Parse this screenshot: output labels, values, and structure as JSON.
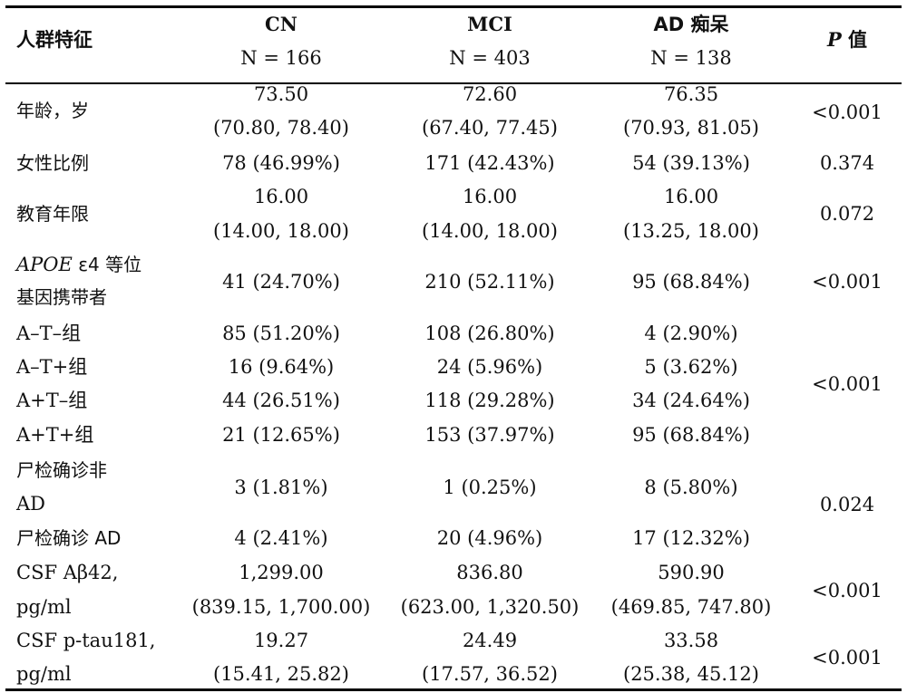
{
  "header": {
    "feature": "人群特征",
    "groups": [
      {
        "name": "CN",
        "n": "N = 166"
      },
      {
        "name": "MCI",
        "n": "N = 403"
      },
      {
        "name": "AD 痴呆",
        "n": "N = 138"
      }
    ],
    "p_italic": "P",
    "p_suffix": " 值"
  },
  "rows": {
    "age": {
      "label": "年龄，岁",
      "cn1": "73.50",
      "cn2": "(70.80, 78.40)",
      "mci1": "72.60",
      "mci2": "(67.40, 77.45)",
      "ad1": "76.35",
      "ad2": "(70.93, 81.05)",
      "p": "<0.001"
    },
    "female": {
      "label": "女性比例",
      "cn": "78 (46.99%)",
      "mci": "171 (42.43%)",
      "ad": "54 (39.13%)",
      "p": "0.374"
    },
    "edu": {
      "label": "教育年限",
      "cn1": "16.00",
      "cn2": "(14.00, 18.00)",
      "mci1": "16.00",
      "mci2": "(14.00, 18.00)",
      "ad1": "16.00",
      "ad2": "(13.25, 18.00)",
      "p": "0.072"
    },
    "apoe": {
      "label_italic": "APOE",
      "label_rest": " ε4 等位",
      "label2": "基因携带者",
      "cn": "41 (24.70%)",
      "mci": "210 (52.11%)",
      "ad": "95 (68.84%)",
      "p": "<0.001"
    },
    "at_nn": {
      "label": "A–T–组",
      "cn": "85 (51.20%)",
      "mci": "108 (26.80%)",
      "ad": "4 (2.90%)"
    },
    "at_np": {
      "label": "A–T+组",
      "cn": "16 (9.64%)",
      "mci": "24 (5.96%)",
      "ad": "5 (3.62%)"
    },
    "at_pn": {
      "label": "A+T–组",
      "cn": "44 (26.51%)",
      "mci": "118 (29.28%)",
      "ad": "34 (24.64%)"
    },
    "at_pp": {
      "label": "A+T+组",
      "cn": "21 (12.65%)",
      "mci": "153 (37.97%)",
      "ad": "95 (68.84%)"
    },
    "at_p": "<0.001",
    "autopsy_non": {
      "label1": "尸检确诊非",
      "label2": "AD",
      "cn": "3 (1.81%)",
      "mci": "1 (0.25%)",
      "ad": "8 (5.80%)"
    },
    "autopsy_ad": {
      "label": "尸检确诊 AD",
      "cn": "4 (2.41%)",
      "mci": "20 (4.96%)",
      "ad": "17 (12.32%)"
    },
    "autopsy_p": "0.024",
    "abeta": {
      "label1": "CSF Aβ42,",
      "label2": "pg/ml",
      "cn1": "1,299.00",
      "cn2": "(839.15, 1,700.00)",
      "mci1": "836.80",
      "mci2": "(623.00, 1,320.50)",
      "ad1": "590.90",
      "ad2": "(469.85, 747.80)",
      "p": "<0.001"
    },
    "ptau": {
      "label1": "CSF p-tau181,",
      "label2": "pg/ml",
      "cn1": "19.27",
      "cn2": "(15.41, 25.82)",
      "mci1": "24.49",
      "mci2": "(17.57, 36.52)",
      "ad1": "33.58",
      "ad2": "(25.38, 45.12)",
      "p": "<0.001"
    }
  }
}
